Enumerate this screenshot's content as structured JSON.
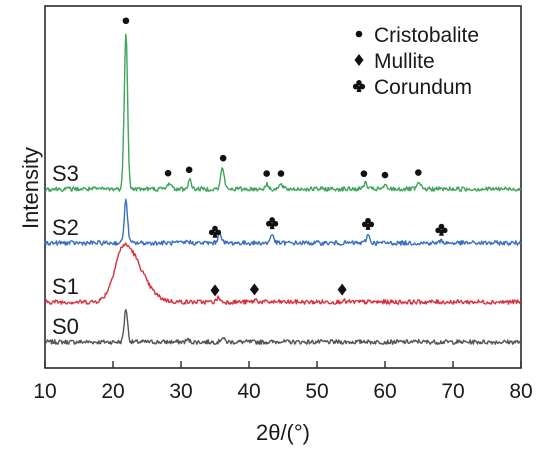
{
  "chart_data": {
    "type": "line",
    "xlabel": "2θ/(°)",
    "ylabel": "Intensity",
    "xlim": [
      10,
      80
    ],
    "x_ticks": [
      "10",
      "20",
      "30",
      "40",
      "50",
      "60",
      "70",
      "80"
    ],
    "y_ticks": false,
    "grid": false,
    "legend_position": "top-right",
    "legend": [
      {
        "label": "Cristobalite",
        "marker": "dot"
      },
      {
        "label": "Mullite",
        "marker": "diamond"
      },
      {
        "label": "Corundum",
        "marker": "club"
      }
    ],
    "series": [
      {
        "name": "S0",
        "color": "#555555",
        "peaks": [
          [
            21.9,
            0.9
          ],
          [
            31.0,
            0.06
          ],
          [
            36.1,
            0.12
          ],
          [
            44.6,
            0.03
          ],
          [
            57.0,
            0.03
          ],
          [
            65.0,
            0.02
          ]
        ]
      },
      {
        "name": "S1",
        "color": "#d9303c",
        "hump": {
          "center": 21.7,
          "height": 1.55,
          "width": 2.2
        },
        "peaks": [
          [
            35.5,
            0.12
          ],
          [
            41.0,
            0.06
          ],
          [
            53.8,
            0.04
          ]
        ]
      },
      {
        "name": "S2",
        "color": "#3a6fc4",
        "peaks": [
          [
            21.9,
            1.15
          ],
          [
            35.7,
            0.3
          ],
          [
            43.4,
            0.24
          ],
          [
            57.5,
            0.22
          ],
          [
            68.3,
            0.06
          ],
          [
            31.0,
            0.05
          ]
        ]
      },
      {
        "name": "S3",
        "color": "#3fa55a",
        "peaks": [
          [
            21.9,
            4.25
          ],
          [
            28.3,
            0.18
          ],
          [
            31.3,
            0.24
          ],
          [
            36.1,
            0.58
          ],
          [
            42.6,
            0.12
          ],
          [
            44.7,
            0.12
          ],
          [
            57.1,
            0.16
          ],
          [
            60.0,
            0.08
          ],
          [
            65.0,
            0.16
          ]
        ]
      }
    ],
    "annotations": [
      {
        "series": "S3",
        "marker": "dot",
        "x": [
          21.9,
          28.1,
          31.2,
          36.2,
          42.6,
          44.7,
          56.9,
          60.0,
          64.9
        ]
      },
      {
        "series": "S2",
        "marker": "club",
        "x": [
          35.0,
          43.4,
          57.5,
          68.3
        ]
      },
      {
        "series": "S1",
        "marker": "diamond",
        "x": [
          35.0,
          40.8,
          53.7
        ]
      }
    ]
  }
}
